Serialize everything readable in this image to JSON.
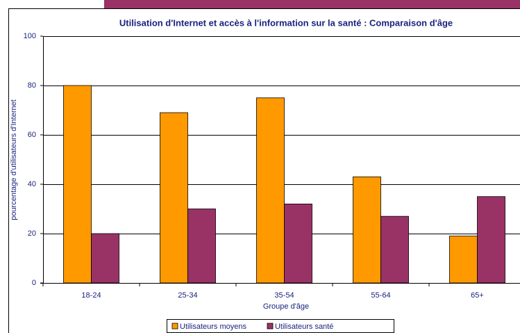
{
  "chart_data": {
    "type": "bar",
    "title": "Utilisation d'Internet et accès à l'information sur la santé : Comparaison d'âge",
    "x_label": "Groupe d'âge",
    "y_label": "pourcentage d'utilisateurs d'Internet",
    "categories": [
      "18-24",
      "25-34",
      "35-54",
      "55-64",
      "65+"
    ],
    "series": [
      {
        "name": "Utilisateurs moyens",
        "color": "#ff9900",
        "values": [
          80,
          69,
          75,
          43,
          19
        ]
      },
      {
        "name": "Utilisateurs santé",
        "color": "#993366",
        "values": [
          20,
          30,
          32,
          27,
          35
        ]
      }
    ],
    "ylim": [
      0,
      100
    ],
    "yticks": [
      0,
      20,
      40,
      60,
      80,
      100
    ],
    "grid": true,
    "legend": "bottom"
  }
}
